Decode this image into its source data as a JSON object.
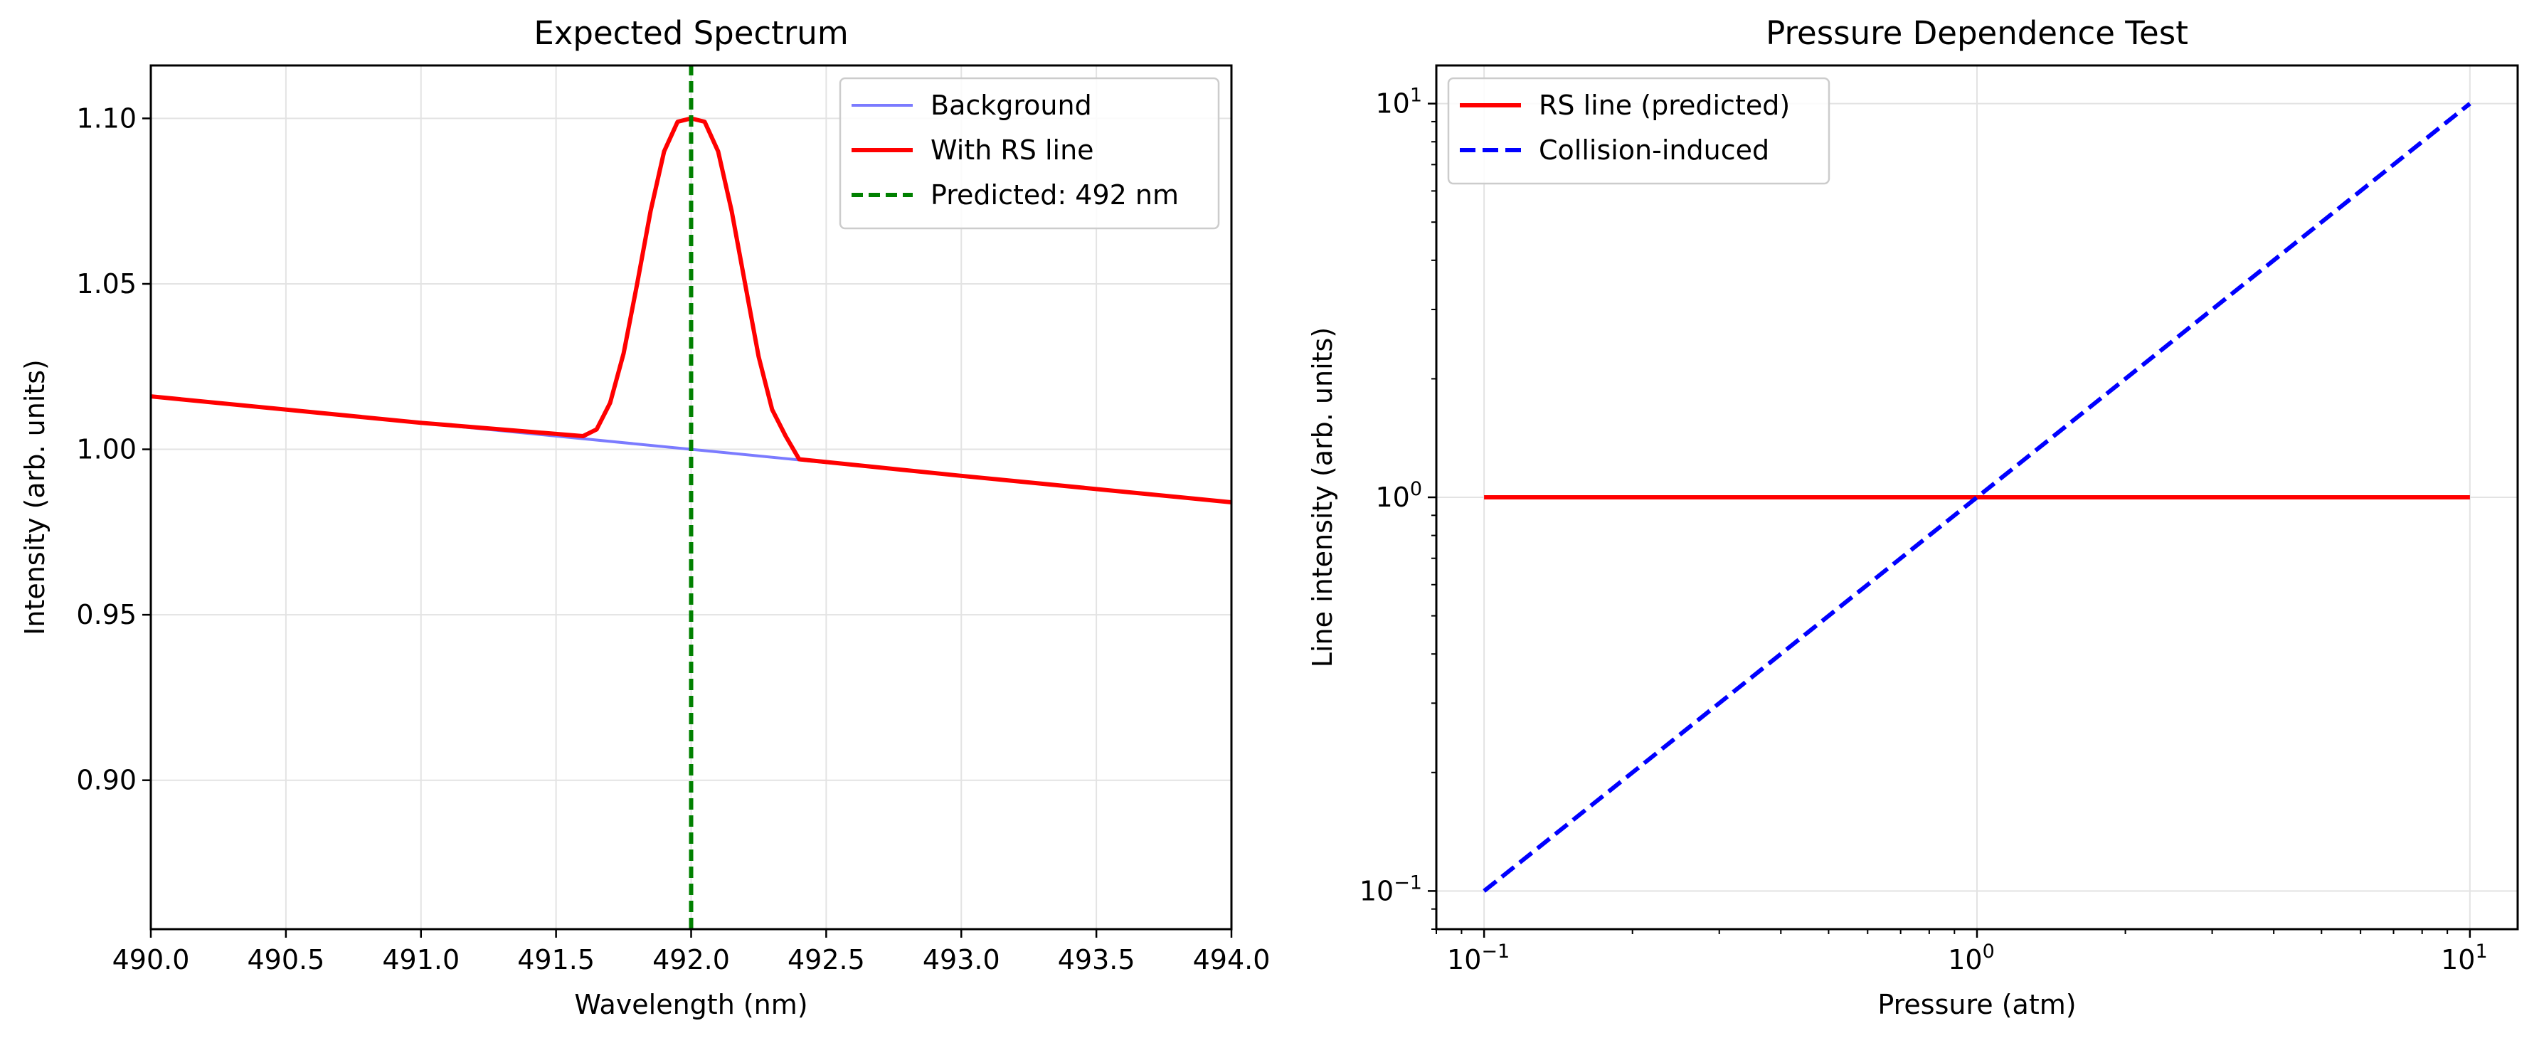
{
  "chart_data": [
    {
      "type": "line",
      "title": "Expected Spectrum",
      "xlabel": "Wavelength (nm)",
      "ylabel": "Intensity (arb. units)",
      "xlim": [
        490.0,
        494.0
      ],
      "ylim": [
        0.855,
        1.116
      ],
      "x_scale": "linear",
      "y_scale": "linear",
      "grid": true,
      "legend_position": "top-right",
      "x_ticks": [
        490.0,
        490.5,
        491.0,
        491.5,
        492.0,
        492.5,
        493.0,
        493.5,
        494.0
      ],
      "x_tick_labels": [
        "490.0",
        "490.5",
        "491.0",
        "491.5",
        "492.0",
        "492.5",
        "493.0",
        "493.5",
        "494.0"
      ],
      "y_ticks": [
        0.9,
        0.95,
        1.0,
        1.05,
        1.1
      ],
      "y_tick_labels": [
        "0.90",
        "0.95",
        "1.00",
        "1.05",
        "1.10"
      ],
      "series": [
        {
          "name": "Background",
          "color": "#7b7bff",
          "style": "solid",
          "x": [
            490.0,
            494.0
          ],
          "y": [
            1.016,
            0.984
          ]
        },
        {
          "name": "With RS line",
          "color": "#ff0000",
          "style": "solid",
          "x": [
            490.0,
            491.0,
            491.6,
            491.65,
            491.7,
            491.75,
            491.8,
            491.85,
            491.9,
            491.95,
            492.0,
            492.05,
            492.1,
            492.15,
            492.2,
            492.25,
            492.3,
            492.35,
            492.4,
            493.0,
            494.0
          ],
          "y": [
            1.016,
            1.008,
            1.004,
            1.006,
            1.014,
            1.029,
            1.05,
            1.072,
            1.09,
            1.099,
            1.1,
            1.099,
            1.09,
            1.072,
            1.05,
            1.028,
            1.012,
            1.004,
            0.997,
            0.992,
            0.984
          ]
        },
        {
          "name": "Predicted: 492 nm",
          "color": "#008000",
          "style": "dashed",
          "x": [
            492.0,
            492.0
          ],
          "y": [
            0.855,
            1.116
          ]
        }
      ]
    },
    {
      "type": "line",
      "title": "Pressure Dependence Test",
      "xlabel": "Pressure (atm)",
      "ylabel": "Line intensity (arb. units)",
      "xlim": [
        0.08,
        12.5
      ],
      "ylim": [
        0.08,
        12.5
      ],
      "x_scale": "log",
      "y_scale": "log",
      "grid": true,
      "legend_position": "top-left",
      "x_ticks": [
        0.1,
        1,
        10
      ],
      "x_tick_labels": [
        "10",
        "10",
        "10"
      ],
      "x_tick_exponents": [
        "−1",
        "0",
        "1"
      ],
      "y_ticks": [
        0.1,
        1,
        10
      ],
      "y_tick_labels": [
        "10",
        "10",
        "10"
      ],
      "y_tick_exponents": [
        "−1",
        "0",
        "1"
      ],
      "series": [
        {
          "name": "RS line (predicted)",
          "color": "#ff0000",
          "style": "solid",
          "x": [
            0.1,
            10
          ],
          "y": [
            1,
            1
          ]
        },
        {
          "name": "Collision-induced",
          "color": "#0000ff",
          "style": "dashed",
          "x": [
            0.1,
            10
          ],
          "y": [
            0.1,
            10
          ]
        }
      ]
    }
  ]
}
